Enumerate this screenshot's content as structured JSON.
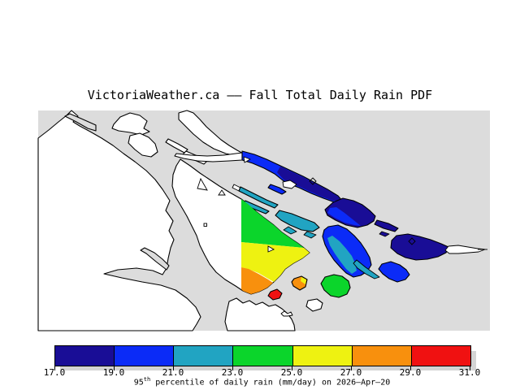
{
  "title": "VictoriaWeather.ca —— Fall Total Daily Rain PDF",
  "map": {
    "sea_color": "#dcdcdc",
    "land_color": "#ffffff",
    "outline_color": "#000000"
  },
  "palette": {
    "navy": "#190d96",
    "blue": "#0b2bf7",
    "cyan": "#21a4c2",
    "green": "#0bd52b",
    "yellow": "#eef211",
    "orange": "#f8900d",
    "red": "#f01111"
  },
  "legend": {
    "ticks": [
      "17.0",
      "19.0",
      "21.0",
      "23.0",
      "25.0",
      "27.0",
      "29.0",
      "31.0"
    ],
    "segment_colors": [
      "#190d96",
      "#0b2bf7",
      "#21a4c2",
      "#0bd52b",
      "#eef211",
      "#f8900d",
      "#f01111"
    ],
    "caption_base": "95",
    "caption_sup": "th",
    "caption_rest": " percentile of daily rain (mm/day) on 2026—Apr—20"
  },
  "chart_data": {
    "type": "heatmap",
    "title": "VictoriaWeather.ca —— Fall Total Daily Rain PDF",
    "variable": "95th percentile of daily rain",
    "units": "mm/day",
    "date": "2026-Apr-20",
    "scale_min": 17.0,
    "scale_max": 31.0,
    "scale_step": 2.0,
    "scale_bins": [
      [
        17.0,
        19.0
      ],
      [
        19.0,
        21.0
      ],
      [
        21.0,
        23.0
      ],
      [
        23.0,
        25.0
      ],
      [
        25.0,
        27.0
      ],
      [
        27.0,
        29.0
      ],
      [
        29.0,
        31.0
      ]
    ],
    "legend_position": "bottom",
    "regions": [
      {
        "name": "galiano-island",
        "value_range": "19-21 and 17-19"
      },
      {
        "name": "mayne-island",
        "value_range": "17-19 with 19-21 fringe"
      },
      {
        "name": "saturna-island",
        "value_range": "17-19"
      },
      {
        "name": "pender-island",
        "value_range": "19-21 with 21-23 core"
      },
      {
        "name": "saltspring-island",
        "value_range": "23-29 gradient"
      },
      {
        "name": "prevost-island",
        "value_range": "21-23"
      },
      {
        "name": "wallace-islets",
        "value_range": "21-23"
      },
      {
        "name": "southeast-blue-islet",
        "value_range": "19-21"
      },
      {
        "name": "green-islet",
        "value_range": "23-25"
      },
      {
        "name": "orange-islet",
        "value_range": "25-29"
      },
      {
        "name": "red-islet",
        "value_range": "29-31"
      }
    ]
  }
}
